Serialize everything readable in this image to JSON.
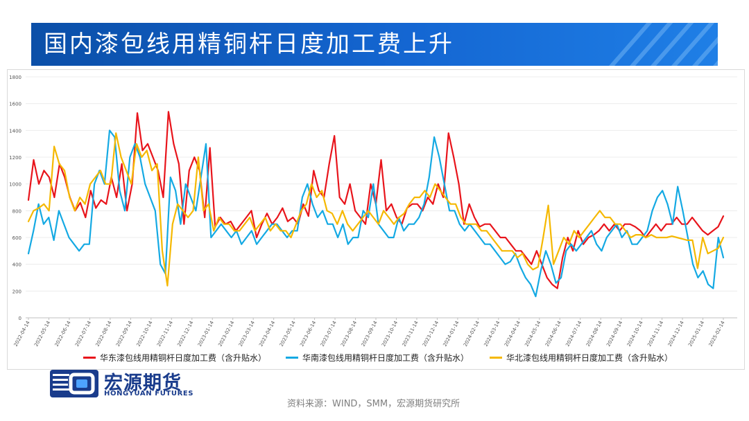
{
  "header": {
    "title": "国内漆包线用精铜杆日度加工费上升"
  },
  "logo": {
    "cn": "宏源期货",
    "en": "HONGYUAN FUTURES"
  },
  "source": "资料来源：WIND，SMM，宏源期货研究所",
  "colors": {
    "banner": "#1466d2",
    "banner_dark": "#0b4fa8",
    "red": "#e8141b",
    "blue": "#14a9e3",
    "yellow": "#f5b800"
  },
  "chart_data": {
    "type": "line",
    "ylim": [
      0,
      1800
    ],
    "yticks": [
      0,
      200,
      400,
      600,
      800,
      1000,
      1200,
      1400,
      1600,
      1800
    ],
    "xticks": [
      "2022-04-14",
      "2022-05-14",
      "2022-06-14",
      "2022-07-14",
      "2022-08-14",
      "2022-09-14",
      "2022-10-14",
      "2022-11-14",
      "2022-12-14",
      "2023-01-14",
      "2023-02-14",
      "2023-03-14",
      "2023-04-14",
      "2023-05-14",
      "2023-06-14",
      "2023-07-14",
      "2023-08-14",
      "2023-09-14",
      "2023-10-14",
      "2023-11-14",
      "2023-12-14",
      "2024-01-14",
      "2024-02-14",
      "2024-03-14",
      "2024-04-14",
      "2024-05-14",
      "2024-06-14",
      "2024-07-14",
      "2024-08-14",
      "2024-09-14",
      "2024-10-14",
      "2024-11-14",
      "2024-12-14",
      "2025-01-14",
      "2025-02-14"
    ],
    "legend_position": "bottom",
    "series": [
      {
        "name": "华东漆包线用精铜杆日度加工费（含升贴水）",
        "color": "#e8141b",
        "values": [
          880,
          1180,
          1000,
          1100,
          1050,
          900,
          1150,
          1050,
          900,
          800,
          860,
          750,
          950,
          820,
          880,
          850,
          1050,
          900,
          1150,
          800,
          1000,
          1530,
          1250,
          1300,
          1200,
          1100,
          900,
          1540,
          1300,
          1150,
          700,
          1100,
          1200,
          1100,
          750,
          1270,
          680,
          750,
          700,
          720,
          650,
          700,
          750,
          800,
          600,
          700,
          780,
          700,
          750,
          820,
          720,
          750,
          700,
          850,
          760,
          1100,
          950,
          900,
          1150,
          1360,
          900,
          850,
          1000,
          800,
          750,
          700,
          1000,
          850,
          1180,
          800,
          850,
          750,
          700,
          820,
          850,
          850,
          800,
          900,
          850,
          1000,
          900,
          1380,
          1200,
          1000,
          700,
          850,
          750,
          680,
          700,
          700,
          650,
          600,
          600,
          550,
          500,
          500,
          450,
          400,
          500,
          400,
          300,
          250,
          220,
          450,
          600,
          500,
          650,
          550,
          600,
          620,
          650,
          700,
          650,
          700,
          650,
          700,
          700,
          680,
          650,
          600,
          650,
          700,
          650,
          700,
          700,
          750,
          700,
          700,
          750,
          700,
          650,
          620,
          650,
          680,
          760
        ]
      },
      {
        "name": "华南漆包线用精铜杆日度加工费（含升贴水）",
        "color": "#14a9e3",
        "values": [
          480,
          650,
          850,
          700,
          750,
          580,
          800,
          700,
          600,
          550,
          500,
          550,
          550,
          1000,
          1100,
          1000,
          1400,
          1350,
          950,
          800,
          1200,
          1300,
          1200,
          1000,
          900,
          800,
          400,
          330,
          1050,
          950,
          700,
          1000,
          900,
          800,
          1050,
          1300,
          600,
          650,
          700,
          650,
          600,
          650,
          550,
          600,
          650,
          550,
          600,
          650,
          700,
          700,
          650,
          600,
          650,
          650,
          900,
          1000,
          850,
          750,
          800,
          700,
          700,
          600,
          700,
          550,
          600,
          600,
          800,
          750,
          1000,
          700,
          650,
          600,
          600,
          750,
          650,
          700,
          700,
          750,
          850,
          1050,
          1350,
          1200,
          1000,
          800,
          800,
          700,
          650,
          700,
          650,
          600,
          550,
          550,
          500,
          450,
          400,
          420,
          480,
          380,
          300,
          250,
          160,
          350,
          500,
          400,
          260,
          300,
          500,
          550,
          500,
          550,
          600,
          650,
          550,
          500,
          600,
          650,
          700,
          600,
          650,
          550,
          550,
          600,
          650,
          800,
          900,
          950,
          850,
          700,
          980,
          800,
          600,
          400,
          300,
          350,
          250,
          220,
          600,
          450
        ]
      },
      {
        "name": "华北漆包线用精铜杆日度加工费（含升贴水）",
        "color": "#f5b800",
        "values": [
          720,
          800,
          820,
          850,
          800,
          1280,
          1150,
          1100,
          900,
          800,
          900,
          850,
          1000,
          1050,
          1100,
          1000,
          1000,
          1380,
          1200,
          1100,
          1000,
          1300,
          1200,
          1250,
          1100,
          1150,
          500,
          240,
          700,
          850,
          800,
          750,
          800,
          1200,
          800,
          850,
          650,
          750,
          700,
          700,
          650,
          650,
          700,
          750,
          650,
          700,
          750,
          650,
          700,
          650,
          650,
          600,
          700,
          800,
          850,
          1000,
          900,
          950,
          800,
          780,
          700,
          800,
          700,
          650,
          700,
          750,
          800,
          750,
          700,
          800,
          750,
          700,
          750,
          780,
          850,
          900,
          900,
          950,
          900,
          1000,
          950,
          900,
          850,
          850,
          750,
          700,
          700,
          700,
          650,
          650,
          600,
          550,
          500,
          500,
          500,
          450,
          480,
          400,
          360,
          380,
          600,
          840,
          400,
          500,
          600,
          550,
          650,
          600,
          650,
          700,
          750,
          800,
          750,
          750,
          700,
          700,
          650,
          600,
          620,
          620,
          600,
          620,
          600,
          600,
          600,
          610,
          600,
          590,
          580,
          580,
          370,
          600,
          480,
          500,
          520,
          600
        ]
      }
    ]
  }
}
